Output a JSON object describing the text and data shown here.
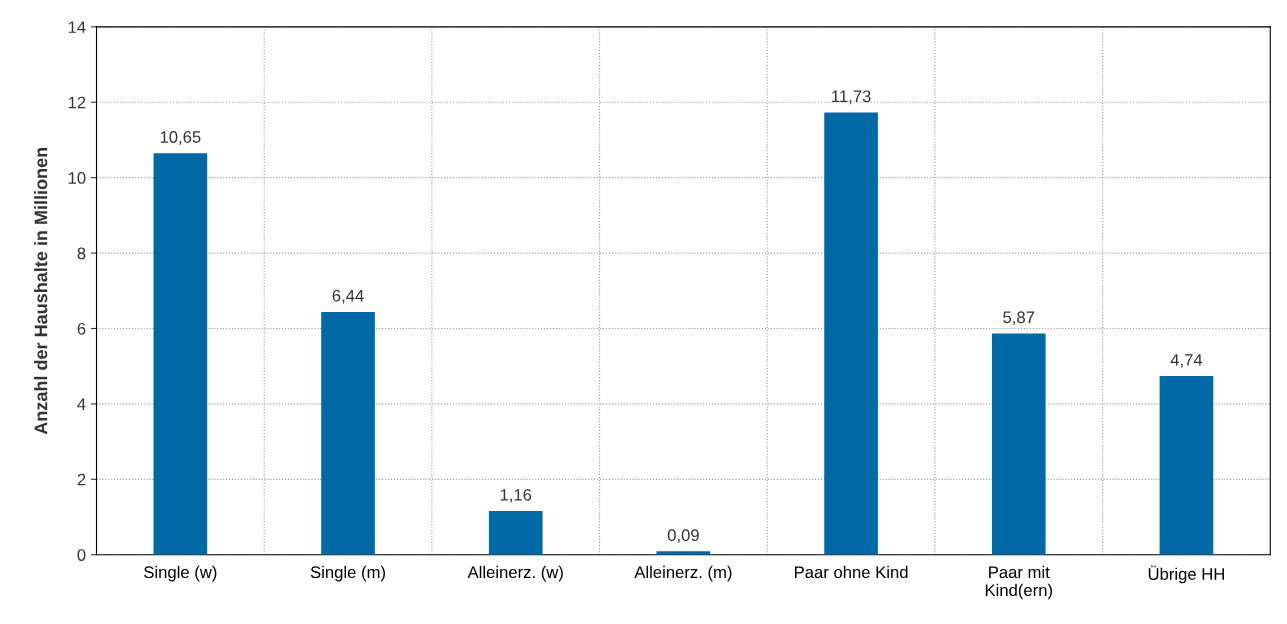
{
  "chart_data": {
    "type": "bar",
    "ylabel": "Anzahl der Haushalte in Millionen",
    "categories": [
      "Single (w)",
      "Single (m)",
      "Alleinerz. (w)",
      "Alleinerz. (m)",
      "Paar ohne Kind",
      "Paar mit\nKind(ern)",
      "Übrige HH"
    ],
    "values": [
      10.65,
      6.44,
      1.16,
      0.09,
      11.73,
      5.87,
      4.74
    ],
    "value_labels": [
      "10,65",
      "6,44",
      "1,16",
      "0,09",
      "11,73",
      "5,87",
      "4,74"
    ],
    "color": "#0069a6",
    "ylim": [
      0,
      14
    ],
    "yticks": [
      0,
      2,
      4,
      6,
      8,
      10,
      12,
      14
    ],
    "grid": true
  }
}
